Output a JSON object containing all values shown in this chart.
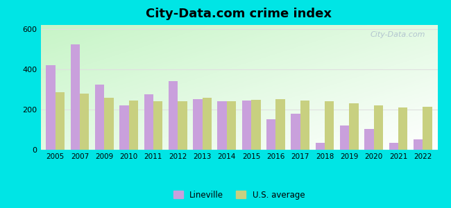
{
  "title": "City-Data.com crime index",
  "years": [
    2005,
    2007,
    2009,
    2010,
    2011,
    2012,
    2013,
    2014,
    2015,
    2016,
    2017,
    2018,
    2019,
    2020,
    2021,
    2022
  ],
  "lineville": [
    420,
    525,
    325,
    220,
    275,
    340,
    250,
    240,
    245,
    150,
    180,
    35,
    120,
    105,
    35,
    50
  ],
  "us_average": [
    285,
    280,
    260,
    245,
    240,
    240,
    258,
    242,
    248,
    252,
    245,
    242,
    230,
    222,
    210,
    215
  ],
  "lineville_color": "#c9a0dc",
  "us_avg_color": "#c8d080",
  "outer_bg": "#00e5e5",
  "ylim": [
    0,
    620
  ],
  "yticks": [
    0,
    200,
    400,
    600
  ],
  "bar_width": 0.38,
  "watermark": "City-Data.com",
  "legend_lineville": "Lineville",
  "legend_us": "U.S. average",
  "grid_color": "#e0e0e0",
  "bottom_left_color": "#c8f0c8",
  "top_right_color": "#f0f8f0"
}
